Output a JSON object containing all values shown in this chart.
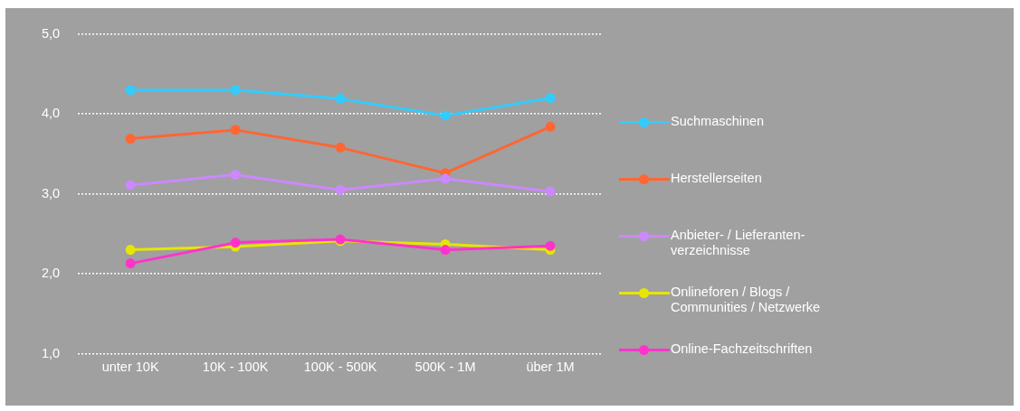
{
  "chart_data": {
    "type": "line",
    "categories": [
      "unter 10K",
      "10K - 100K",
      "100K - 500K",
      "500K - 1M",
      "über 1M"
    ],
    "series": [
      {
        "name": "Suchmaschinen",
        "color": "#33ccff",
        "values": [
          4.3,
          4.3,
          4.19,
          3.98,
          4.2
        ]
      },
      {
        "name": "Herstellerseiten",
        "color": "#ff6633",
        "values": [
          3.69,
          3.8,
          3.58,
          3.26,
          3.84
        ]
      },
      {
        "name": "Anbieter- / Lieferanten-verzeichnisse",
        "color": "#cc88ff",
        "values": [
          3.11,
          3.24,
          3.05,
          3.19,
          3.03
        ]
      },
      {
        "name": "Onlineforen / Blogs / Communities / Netzwerke",
        "color": "#e6e600",
        "values": [
          2.3,
          2.34,
          2.41,
          2.37,
          2.3
        ]
      },
      {
        "name": "Online-Fachzeitschriften",
        "color": "#ff33cc",
        "values": [
          2.13,
          2.39,
          2.43,
          2.3,
          2.35
        ]
      }
    ],
    "ylim": [
      1,
      5
    ],
    "yticks": [
      {
        "value": 1,
        "label": "1,0"
      },
      {
        "value": 2,
        "label": "2,0"
      },
      {
        "value": 3,
        "label": "3,0"
      },
      {
        "value": 4,
        "label": "4,0"
      },
      {
        "value": 5,
        "label": "5,0"
      }
    ],
    "grid": "y",
    "legend": "right",
    "marker": "circle",
    "line_style": "solid"
  }
}
